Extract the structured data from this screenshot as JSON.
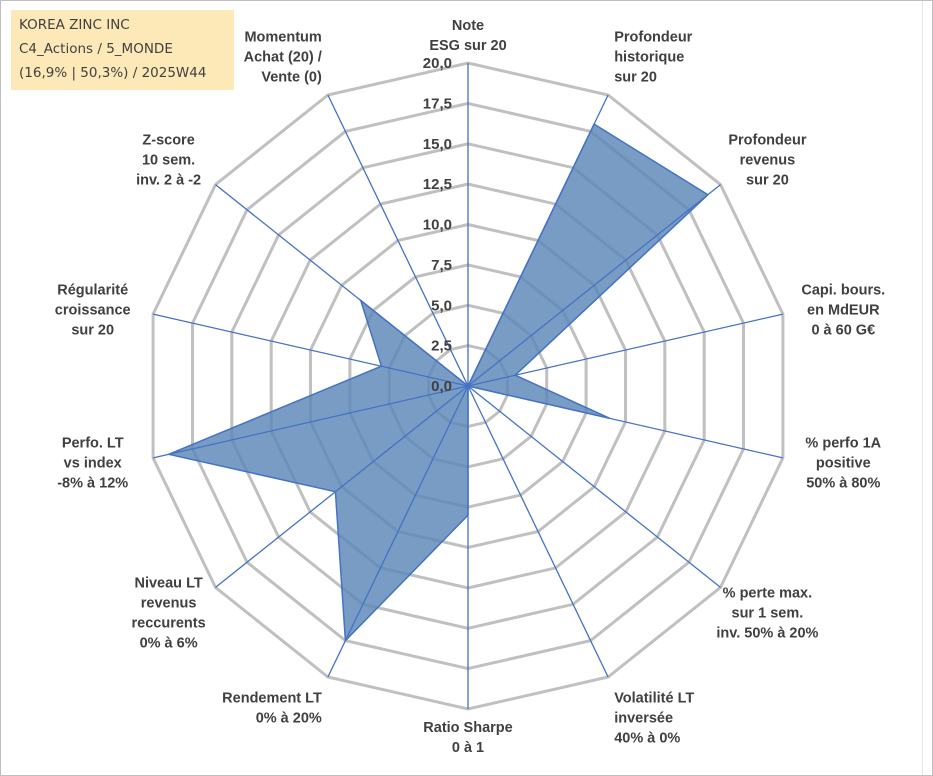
{
  "info": {
    "company": "KOREA ZINC INC",
    "portfolio": "C4_Actions / 5_MONDE",
    "stats": "(16,9% | 50,3%) / 2025W44"
  },
  "chart_data": {
    "type": "radar",
    "title": "",
    "rmin": 0,
    "rmax": 20,
    "tick_values": [
      0,
      2.5,
      5,
      7.5,
      10,
      12.5,
      15,
      17.5,
      20
    ],
    "tick_labels": [
      "0,0",
      "2,5",
      "5,0",
      "7,5",
      "10,0",
      "12,5",
      "15,0",
      "17,5",
      "20,0"
    ],
    "axes": [
      {
        "label": [
          "Note",
          "ESG sur 20"
        ]
      },
      {
        "label": [
          "Profondeur",
          "historique",
          "sur 20"
        ]
      },
      {
        "label": [
          "Profondeur",
          "revenus",
          "sur 20"
        ]
      },
      {
        "label": [
          "Capi. bours.",
          "en MdEUR",
          "0 à 60 G€"
        ]
      },
      {
        "label": [
          "% perfo 1A",
          "positive",
          "50% à 80%"
        ]
      },
      {
        "label": [
          "% perte max.",
          "sur 1 sem.",
          "inv. 50% à 20%"
        ]
      },
      {
        "label": [
          "Volatilité LT",
          "inversée",
          "40% à 0%"
        ]
      },
      {
        "label": [
          "Ratio Sharpe",
          "0 à 1"
        ]
      },
      {
        "label": [
          "Rendement LT",
          "0% à 20%"
        ]
      },
      {
        "label": [
          "Niveau LT",
          "revenus",
          "reccurents",
          "0% à 6%"
        ]
      },
      {
        "label": [
          "Perfo. LT",
          "vs index",
          "-8% à 12%"
        ]
      },
      {
        "label": [
          "Régularité",
          "croissance",
          "sur 20"
        ]
      },
      {
        "label": [
          "Z-score",
          "10 sem.",
          "inv. 2 à -2"
        ]
      },
      {
        "label": [
          "Momentum",
          "Achat (20) /",
          "Vente (0)"
        ]
      }
    ],
    "series": [
      {
        "values": [
          0,
          18,
          19,
          3,
          9,
          0,
          0,
          8,
          17.5,
          10.5,
          19,
          5.5,
          8.5,
          0
        ]
      }
    ],
    "colors": {
      "fill": "#5c86b8",
      "stroke": "#4472c4",
      "grid": "#c0c0c0",
      "spoke": "#4472c4"
    },
    "grid": true,
    "legend": "none"
  }
}
